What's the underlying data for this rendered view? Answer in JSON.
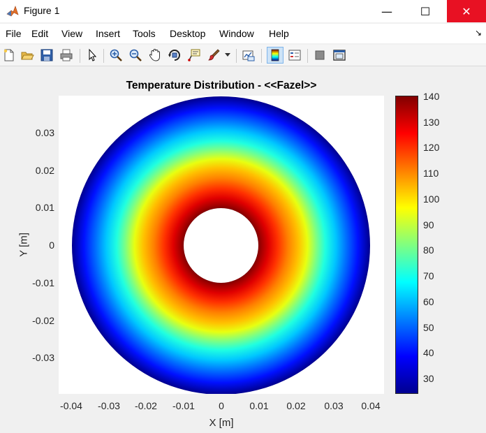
{
  "window": {
    "title": "Figure 1",
    "minimize_label": "—",
    "maximize_label": "☐",
    "close_label": "✕"
  },
  "menu": {
    "items": [
      "File",
      "Edit",
      "View",
      "Insert",
      "Tools",
      "Desktop",
      "Window",
      "Help"
    ],
    "overflow_label": "↘"
  },
  "toolbar": {
    "icons": [
      "new-figure-icon",
      "open-icon",
      "save-icon",
      "print-icon",
      "pointer-icon",
      "zoom-in-icon",
      "zoom-out-icon",
      "pan-icon",
      "rotate-3d-icon",
      "data-cursor-icon",
      "brush-icon",
      "link-plot-icon",
      "colorbar-icon",
      "legend-icon",
      "hide-plot-tools-icon",
      "show-plot-tools-icon"
    ]
  },
  "plot": {
    "title": "Temperature Distribution - <<Fazel>>",
    "xlabel": "X [m]",
    "ylabel": "Y [m]",
    "x_ticks": [
      "-0.04",
      "-0.03",
      "-0.02",
      "-0.01",
      "0",
      "0.01",
      "0.02",
      "0.03",
      "0.04"
    ],
    "y_ticks": [
      "0.03",
      "0.02",
      "0.01",
      "0",
      "-0.01",
      "-0.02",
      "-0.03"
    ],
    "colorbar_ticks": [
      "140",
      "130",
      "120",
      "110",
      "100",
      "90",
      "80",
      "70",
      "60",
      "50",
      "40",
      "30"
    ]
  },
  "chart_data": {
    "type": "heatmap",
    "title": "Temperature Distribution - <<Fazel>>",
    "xlabel": "X [m]",
    "ylabel": "Y [m]",
    "xlim": [
      -0.0435,
      0.0435
    ],
    "ylim": [
      -0.04,
      0.04
    ],
    "geometry": "annulus",
    "inner_radius": 0.01,
    "outer_radius": 0.04,
    "temperature_inner": 140,
    "temperature_outer": 25,
    "colormap": "jet",
    "clim": [
      25,
      140
    ],
    "colorbar_ticks": [
      140,
      130,
      120,
      110,
      100,
      90,
      80,
      70,
      60,
      50,
      40,
      30
    ],
    "grid": false
  }
}
